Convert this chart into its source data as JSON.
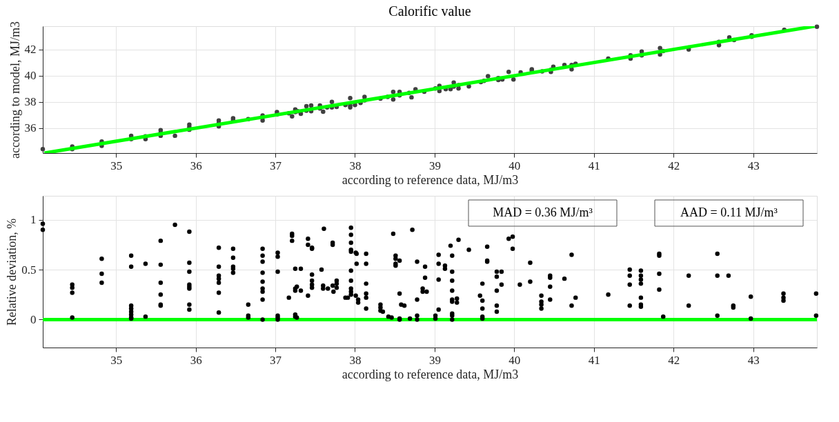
{
  "chart_data": [
    {
      "type": "scatter",
      "title": "Calorific value",
      "xlabel": "according to reference data, MJ/m3",
      "ylabel": "according to model, MJ/m3",
      "xlim": [
        34.08,
        43.8
      ],
      "ylim": [
        34.1,
        43.77
      ],
      "xticks": [
        35,
        36,
        37,
        38,
        39,
        40,
        41,
        42,
        43
      ],
      "yticks": [
        36,
        38,
        40,
        42
      ],
      "grid": true,
      "series": [
        {
          "color": "#404040",
          "marker": "circle",
          "x": [
            34.08,
            34.45,
            34.45,
            34.82,
            34.82,
            35.19,
            35.19,
            35.37,
            35.37,
            35.56,
            35.56,
            35.56,
            35.74,
            35.92,
            35.92,
            35.92,
            36.29,
            36.29,
            36.29,
            36.47,
            36.47,
            36.66,
            36.84,
            36.84,
            36.84,
            37.02,
            37.02,
            37.17,
            37.21,
            37.25,
            37.25,
            37.28,
            37.32,
            37.39,
            37.39,
            37.45,
            37.45,
            37.56,
            37.56,
            37.6,
            37.65,
            37.71,
            37.71,
            37.77,
            37.88,
            37.94,
            37.94,
            37.94,
            38.0,
            38.07,
            38.12,
            38.12,
            38.32,
            38.41,
            38.48,
            38.48,
            38.56,
            38.56,
            38.68,
            38.71,
            38.76,
            38.87,
            39.01,
            39.06,
            39.06,
            39.14,
            39.2,
            39.24,
            39.24,
            39.3,
            39.3,
            39.43,
            39.58,
            39.62,
            39.67,
            39.8,
            39.8,
            39.85,
            39.93,
            39.99,
            40.08,
            40.22,
            40.22,
            40.35,
            40.46,
            40.46,
            40.49,
            40.63,
            40.72,
            40.72,
            40.77,
            41.18,
            41.46,
            41.46,
            41.6,
            41.6,
            41.83,
            41.83,
            41.87,
            42.19,
            42.19,
            42.57,
            42.57,
            42.7,
            42.76,
            42.98,
            42.98,
            43.39,
            43.8
          ],
          "values": [
            34.4,
            34.6,
            34.4,
            34.98,
            34.65,
            35.42,
            35.17,
            35.37,
            35.17,
            35.85,
            35.65,
            35.42,
            35.42,
            36.27,
            36.08,
            35.88,
            36.58,
            36.38,
            36.13,
            36.75,
            36.62,
            36.69,
            36.96,
            36.81,
            36.58,
            37.23,
            37.04,
            37.13,
            36.9,
            37.42,
            37.23,
            37.29,
            37.1,
            37.67,
            37.33,
            37.73,
            37.29,
            37.73,
            37.5,
            37.25,
            37.58,
            38.0,
            37.58,
            37.62,
            37.77,
            38.29,
            37.73,
            37.58,
            37.77,
            37.92,
            38.38,
            38.12,
            38.25,
            38.38,
            38.77,
            38.19,
            38.77,
            38.5,
            38.69,
            38.35,
            38.96,
            38.78,
            39.03,
            39.22,
            38.83,
            38.97,
            38.97,
            39.48,
            39.17,
            39.28,
            39.03,
            39.18,
            39.51,
            39.61,
            39.96,
            39.81,
            39.67,
            39.71,
            40.29,
            39.71,
            40.25,
            40.49,
            40.39,
            40.33,
            40.45,
            40.29,
            40.68,
            40.82,
            40.82,
            40.49,
            40.91,
            41.3,
            41.55,
            41.3,
            41.84,
            41.55,
            42.1,
            41.61,
            41.88,
            42.14,
            42.0,
            42.58,
            42.33,
            42.91,
            42.72,
            43.07,
            42.97,
            43.5,
            43.73
          ]
        },
        {
          "type": "line",
          "color": "#00ff00",
          "x": [
            34.1,
            43.77
          ],
          "values": [
            34.1,
            43.77
          ]
        }
      ]
    },
    {
      "type": "scatter",
      "xlabel": "according to reference data, MJ/m3",
      "ylabel": "Relative deviation, %",
      "xlim": [
        34.08,
        43.8
      ],
      "ylim": [
        -0.28,
        1.24
      ],
      "xticks": [
        35,
        36,
        37,
        38,
        39,
        40,
        41,
        42,
        43
      ],
      "yticks": [
        0,
        0.5,
        1
      ],
      "grid": true,
      "annotations": [
        "MAD = 0.36 MJ/m³",
        "AAD = 0.11 MJ/m³"
      ],
      "ref_lines": [
        {
          "axis": "y",
          "value": 0,
          "color": "#00ff00"
        }
      ],
      "series": [
        {
          "color": "#000000",
          "marker": "circle",
          "x": [
            34.08,
            34.08,
            34.45,
            34.45,
            34.45,
            34.45,
            34.82,
            34.82,
            34.82,
            35.19,
            35.19,
            35.19,
            35.19,
            35.19,
            35.19,
            35.19,
            35.19,
            35.37,
            35.37,
            35.56,
            35.56,
            35.56,
            35.56,
            35.56,
            35.56,
            35.74,
            35.92,
            35.92,
            35.92,
            35.92,
            35.92,
            35.92,
            35.92,
            35.92,
            36.29,
            36.29,
            36.29,
            36.29,
            36.29,
            36.29,
            36.29,
            36.47,
            36.47,
            36.47,
            36.47,
            36.47,
            36.66,
            36.66,
            36.66,
            36.84,
            36.84,
            36.84,
            36.84,
            36.84,
            36.84,
            36.84,
            36.84,
            36.84,
            37.03,
            37.03,
            37.03,
            37.03,
            37.03,
            37.03,
            37.17,
            37.21,
            37.21,
            37.21,
            37.25,
            37.25,
            37.25,
            37.25,
            37.25,
            37.27,
            37.27,
            37.32,
            37.32,
            37.41,
            37.41,
            37.41,
            37.46,
            37.46,
            37.46,
            37.46,
            37.46,
            37.46,
            37.58,
            37.61,
            37.6,
            37.6,
            37.66,
            37.72,
            37.72,
            37.72,
            37.73,
            37.77,
            37.77,
            37.77,
            37.88,
            37.91,
            37.95,
            37.95,
            37.95,
            37.95,
            37.95,
            37.95,
            37.95,
            37.95,
            37.95,
            37.95,
            38.01,
            38.01,
            38.02,
            38.02,
            38.04,
            38.04,
            38.14,
            38.14,
            38.14,
            38.14,
            38.14,
            38.14,
            38.32,
            38.32,
            38.32,
            38.35,
            38.42,
            38.46,
            38.48,
            38.51,
            38.51,
            38.51,
            38.51,
            38.56,
            38.56,
            38.56,
            38.56,
            38.58,
            38.62,
            38.69,
            38.72,
            38.78,
            38.78,
            38.78,
            38.78,
            38.85,
            38.85,
            38.88,
            38.88,
            38.9,
            39.01,
            39.01,
            39.05,
            39.05,
            39.05,
            39.05,
            39.13,
            39.13,
            39.2,
            39.22,
            39.22,
            39.22,
            39.22,
            39.22,
            39.22,
            39.22,
            39.22,
            39.22,
            39.28,
            39.28,
            39.3,
            39.43,
            39.57,
            39.6,
            39.6,
            39.6,
            39.6,
            39.6,
            39.66,
            39.66,
            39.66,
            39.78,
            39.78,
            39.78,
            39.78,
            39.78,
            39.84,
            39.84,
            39.93,
            39.98,
            39.98,
            40.07,
            40.2,
            40.2,
            40.34,
            40.34,
            40.34,
            40.34,
            40.45,
            40.45,
            40.45,
            40.45,
            40.63,
            40.72,
            40.72,
            40.77,
            41.18,
            41.45,
            41.45,
            41.45,
            41.45,
            41.59,
            41.59,
            41.59,
            41.59,
            41.59,
            41.59,
            41.59,
            41.82,
            41.82,
            41.82,
            41.82,
            41.87,
            42.19,
            42.19,
            42.55,
            42.55,
            42.55,
            42.69,
            42.75,
            42.75,
            42.97,
            42.97,
            43.38,
            43.38,
            43.38,
            43.79,
            43.79
          ],
          "values": [
            0.96,
            0.9,
            0.35,
            0.32,
            0.27,
            0.02,
            0.61,
            0.46,
            0.37,
            0.64,
            0.53,
            0.14,
            0.11,
            0.08,
            0.05,
            0.02,
            0.01,
            0.56,
            0.03,
            0.79,
            0.55,
            0.37,
            0.25,
            0.15,
            0.14,
            0.95,
            0.88,
            0.57,
            0.48,
            0.35,
            0.33,
            0.31,
            0.15,
            0.1,
            0.72,
            0.53,
            0.44,
            0.41,
            0.37,
            0.27,
            0.07,
            0.71,
            0.62,
            0.53,
            0.51,
            0.47,
            0.15,
            0.04,
            0.02,
            0.71,
            0.64,
            0.58,
            0.47,
            0.38,
            0.31,
            0.28,
            0.2,
            0.0,
            0.67,
            0.63,
            0.48,
            0.04,
            0.02,
            0.0,
            0.22,
            0.86,
            0.84,
            0.79,
            0.51,
            0.31,
            0.29,
            0.05,
            0.03,
            0.33,
            0.02,
            0.51,
            0.29,
            0.81,
            0.75,
            0.24,
            0.72,
            0.71,
            0.45,
            0.39,
            0.35,
            0.32,
            0.5,
            0.91,
            0.34,
            0.31,
            0.31,
            0.77,
            0.75,
            0.34,
            0.28,
            0.39,
            0.36,
            0.32,
            0.22,
            0.22,
            0.92,
            0.85,
            0.77,
            0.7,
            0.68,
            0.49,
            0.39,
            0.31,
            0.28,
            0.25,
            0.67,
            0.24,
            0.66,
            0.56,
            0.2,
            0.17,
            0.66,
            0.56,
            0.36,
            0.26,
            0.22,
            0.11,
            0.15,
            0.12,
            0.09,
            0.08,
            0.03,
            0.02,
            0.86,
            0.64,
            0.61,
            0.56,
            0.54,
            0.59,
            0.26,
            0.01,
            0.0,
            0.15,
            0.14,
            0.01,
            0.9,
            0.58,
            0.2,
            0.04,
            0.0,
            0.31,
            0.28,
            0.53,
            0.42,
            0.28,
            0.04,
            0.01,
            0.65,
            0.56,
            0.4,
            0.1,
            0.54,
            0.51,
            0.74,
            0.64,
            0.48,
            0.39,
            0.29,
            0.2,
            0.18,
            0.06,
            0.04,
            0.0,
            0.21,
            0.17,
            0.8,
            0.7,
            0.24,
            0.36,
            0.19,
            0.11,
            0.03,
            0.01,
            0.73,
            0.59,
            0.58,
            0.48,
            0.43,
            0.29,
            0.14,
            0.08,
            0.48,
            0.35,
            0.81,
            0.83,
            0.71,
            0.35,
            0.57,
            0.38,
            0.24,
            0.18,
            0.15,
            0.11,
            0.44,
            0.42,
            0.33,
            0.2,
            0.41,
            0.65,
            0.14,
            0.22,
            0.25,
            0.5,
            0.44,
            0.35,
            0.14,
            0.49,
            0.44,
            0.4,
            0.36,
            0.22,
            0.15,
            0.13,
            0.66,
            0.64,
            0.46,
            0.3,
            0.03,
            0.44,
            0.14,
            0.66,
            0.44,
            0.04,
            0.44,
            0.14,
            0.12,
            0.23,
            0.01,
            0.26,
            0.22,
            0.19,
            0.26,
            0.04
          ]
        }
      ]
    }
  ]
}
